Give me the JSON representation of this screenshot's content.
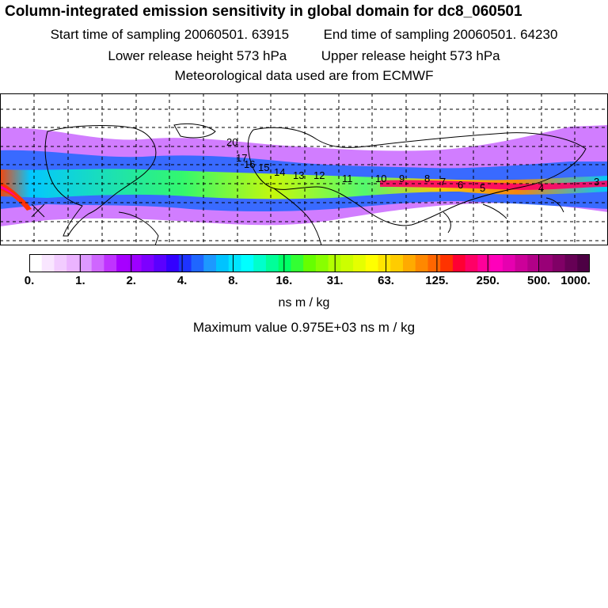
{
  "title": "Column-integrated emission sensitivity in global domain for dc8_060501",
  "sampling": {
    "start_label": "Start time of sampling",
    "start_value": "20060501. 63915",
    "end_label": "End time of sampling",
    "end_value": "20060501. 64230"
  },
  "release": {
    "lower_label": "Lower release height",
    "lower_value": "573 hPa",
    "upper_label": "Upper release height",
    "upper_value": "573 hPa"
  },
  "met_data": "Meteorological data used are from ECMWF",
  "colorbar": {
    "ticks": [
      "0.",
      "1.",
      "2.",
      "4.",
      "8.",
      "16.",
      "31.",
      "63.",
      "125.",
      "250.",
      "500.",
      "1000."
    ],
    "colors": [
      "#ffffff",
      "#f9e6ff",
      "#f2ccff",
      "#ebb3ff",
      "#dd99ff",
      "#cf66ff",
      "#bf33ff",
      "#a600ff",
      "#9d00ff",
      "#7d00ff",
      "#5a00ff",
      "#3300ff",
      "#1e33ff",
      "#1f66ff",
      "#1d99ff",
      "#00c3ff",
      "#00e5ff",
      "#00ffff",
      "#00ffcc",
      "#00ff99",
      "#00ff66",
      "#33ff33",
      "#66ff00",
      "#88ff00",
      "#b2ff00",
      "#ccff00",
      "#e5ff00",
      "#ffff00",
      "#ffe500",
      "#ffcc00",
      "#ffaa00",
      "#ff8800",
      "#ff6600",
      "#ff3300",
      "#ff0033",
      "#ff0066",
      "#ff0099",
      "#ff00bb",
      "#e600b0",
      "#cc0099",
      "#b20088",
      "#990077",
      "#800066",
      "#660055",
      "#4d0044"
    ],
    "units": "ns m / kg"
  },
  "maximum": {
    "label": "Maximum value",
    "value": "0.975E+03",
    "units": "ns m / kg"
  },
  "map_labels": [
    "20",
    "17",
    "16",
    "15",
    "14",
    "13",
    "12",
    "11",
    "10",
    "9",
    "8",
    "7",
    "6",
    "5",
    "4",
    "3"
  ],
  "accent": {
    "ocean": "#ffffff",
    "coast": "#000000"
  }
}
